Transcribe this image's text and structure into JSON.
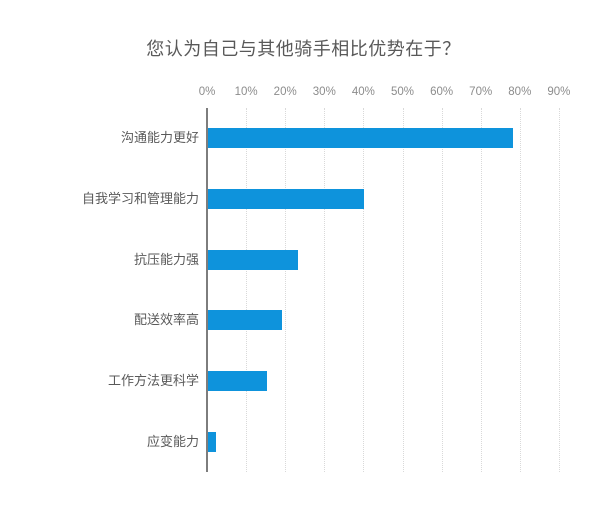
{
  "chart_data": {
    "type": "bar",
    "orientation": "horizontal",
    "title": "您认为自己与其他骑手相比优势在于？",
    "categories": [
      "沟通能力更好",
      "自我学习和管理能力",
      "抗压能力强",
      "配送效率高",
      "工作方法更科学",
      "应变能力"
    ],
    "values": [
      78,
      40,
      23,
      19,
      15,
      2
    ],
    "x_ticks": [
      "0%",
      "10%",
      "20%",
      "30%",
      "40%",
      "50%",
      "60%",
      "70%",
      "80%",
      "90%"
    ],
    "xlim": [
      0,
      90
    ],
    "xlabel": "",
    "ylabel": "",
    "grid": "vertical-dotted",
    "legend": "none",
    "colors": {
      "bar": "#0e93dc",
      "title_text": "#595959",
      "category_text": "#595959",
      "tick_text": "#8c8c8c",
      "gridline": "#d9d9d9",
      "axis_line": "#7d7d7d",
      "background": "#ffffff"
    }
  }
}
